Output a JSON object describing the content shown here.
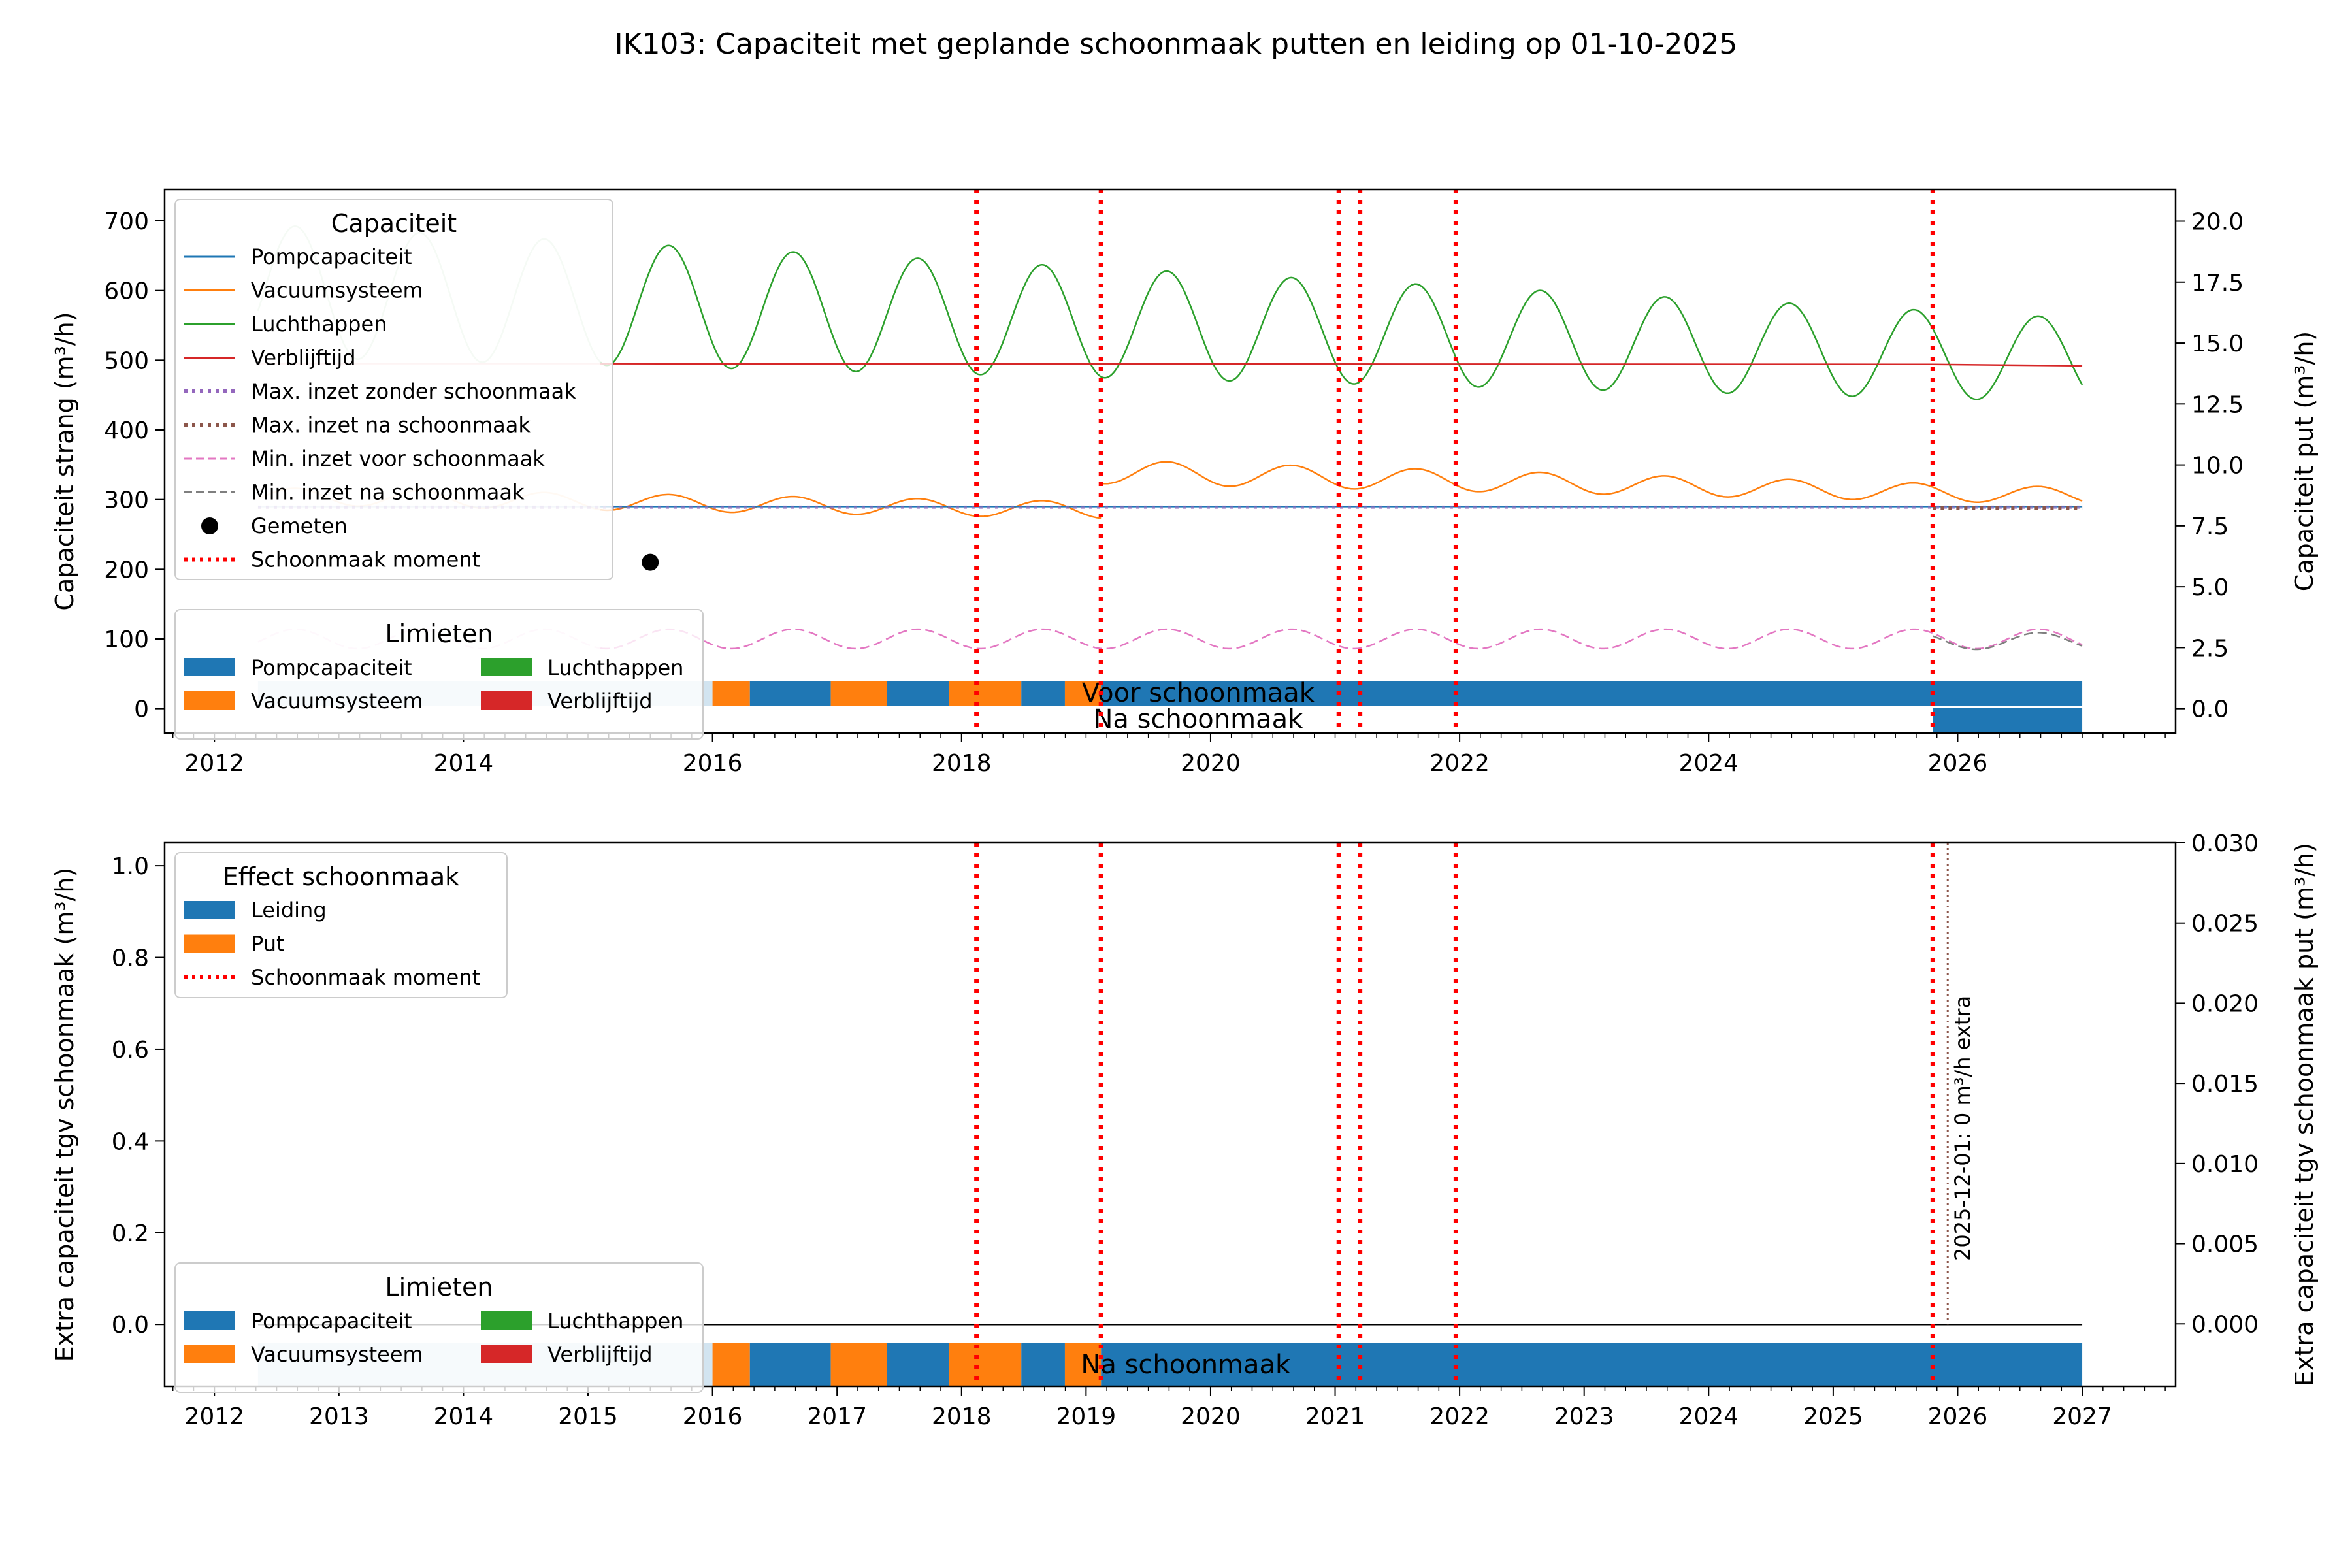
{
  "title": "IK103: Capaciteit met geplande schoonmaak putten en leiding op 01-10-2025",
  "colors": {
    "blue": "#1f77b4",
    "orange": "#ff7f0e",
    "green": "#2ca02c",
    "red": "#d62728",
    "purple": "#9467bd",
    "brown": "#8c564b",
    "pink": "#e377c2",
    "gray": "#7f7f7f",
    "dotred": "#ff0000"
  },
  "chart_data": [
    {
      "type": "line",
      "ylabel_left": "Capaciteit strang (m³/h)",
      "ylabel_right": "Capaciteit put (m³/h)",
      "xlim": [
        2011.6,
        2027.75
      ],
      "ylim": [
        -35,
        745
      ],
      "ylim_right": [
        -1.0,
        21.3
      ],
      "xticks": [
        2012,
        2014,
        2016,
        2018,
        2020,
        2022,
        2024,
        2026
      ],
      "xtick_labels": [
        "2012",
        "2014",
        "2016",
        "2018",
        "2020",
        "2022",
        "2024",
        "2026"
      ],
      "yticks": [
        0,
        100,
        200,
        300,
        400,
        500,
        600,
        700
      ],
      "ytick_labels": [
        "0",
        "100",
        "200",
        "300",
        "400",
        "500",
        "600",
        "700"
      ],
      "yticks_right": [
        0.0,
        2.5,
        5.0,
        7.5,
        10.0,
        12.5,
        15.0,
        17.5,
        20.0
      ],
      "ytick_labels_right": [
        "0.0",
        "2.5",
        "5.0",
        "7.5",
        "10.0",
        "12.5",
        "15.0",
        "17.5",
        "20.0"
      ],
      "grid": false,
      "legend_capaciteit": {
        "title": "Capaciteit",
        "placement": "top-left",
        "entries": [
          "Pompcapaciteit",
          "Vacuumsysteem",
          "Luchthappen",
          "Verblijftijd",
          "Max. inzet zonder schoonmaak",
          "Max. inzet na schoonmaak",
          "Min. inzet voor schoonmaak",
          "Min. inzet na schoonmaak",
          "Gemeten",
          "Schoonmaak moment"
        ]
      },
      "legend_limieten": {
        "title": "Limieten",
        "placement": "lower-left",
        "entries": [
          "Pompcapaciteit",
          "Luchthappen",
          "Vacuumsysteem",
          "Verblijftijd"
        ]
      },
      "series": [
        {
          "name": "Pompcapaciteit",
          "values": [
            [
              2012.35,
              290
            ],
            [
              2027.0,
              290
            ]
          ]
        },
        {
          "name": "Verblijftijd",
          "values": [
            [
              2012.35,
              495
            ],
            [
              2025.8,
              494
            ],
            [
              2027.0,
              492
            ]
          ]
        },
        {
          "name": "Luchthappen",
          "model": {
            "base_start": 600,
            "base_end": 500,
            "amplitude_start": 95,
            "amplitude_end": 60,
            "period_years": 1.0,
            "peak_year": 2012.65
          }
        },
        {
          "name": "Vacuumsysteem",
          "model": {
            "segments": [
              {
                "from": 2012.35,
                "to": 2019.12,
                "base_start": 305,
                "base_end": 285,
                "amplitude": 12
              },
              {
                "from": 2019.12,
                "to": 2027.0,
                "base_start": 340,
                "base_end": 305,
                "amplitude_start": 17,
                "amplitude_end": 12
              }
            ],
            "period_years": 1.0,
            "peak_year": 2012.65
          }
        },
        {
          "name": "Min. inzet voor schoonmaak",
          "model": {
            "base": 100,
            "amplitude": 14,
            "period_years": 1.0,
            "peak_year": 2012.65
          }
        },
        {
          "name": "Min. inzet na schoonmaak",
          "model": {
            "from": 2025.8,
            "to": 2027.0,
            "base": 97,
            "amplitude": 12
          }
        },
        {
          "name": "Max. inzet zonder schoonmaak",
          "values": [
            [
              2012.35,
              289
            ],
            [
              2027.0,
              289
            ]
          ]
        },
        {
          "name": "Max. inzet na schoonmaak",
          "values": [
            [
              2025.8,
              288
            ],
            [
              2027.0,
              288
            ]
          ]
        },
        {
          "name": "Gemeten",
          "points": [
            [
              2015.5,
              210
            ]
          ]
        }
      ],
      "cleaning_moments": [
        2018.12,
        2019.12,
        2021.03,
        2021.2,
        2021.97,
        2025.8
      ],
      "limit_bars": {
        "voor_label": "Voor schoonmaak",
        "na_label": "Na schoonmaak",
        "voor": [
          {
            "from": 2012.35,
            "to": 2016.0,
            "limit": "Pompcapaciteit",
            "faded": true
          },
          {
            "from": 2016.0,
            "to": 2016.3,
            "limit": "Vacuumsysteem"
          },
          {
            "from": 2016.3,
            "to": 2016.95,
            "limit": "Pompcapaciteit"
          },
          {
            "from": 2016.95,
            "to": 2017.4,
            "limit": "Vacuumsysteem"
          },
          {
            "from": 2017.4,
            "to": 2017.9,
            "limit": "Pompcapaciteit"
          },
          {
            "from": 2017.9,
            "to": 2018.48,
            "limit": "Vacuumsysteem"
          },
          {
            "from": 2018.48,
            "to": 2018.83,
            "limit": "Pompcapaciteit"
          },
          {
            "from": 2018.83,
            "to": 2019.12,
            "limit": "Vacuumsysteem"
          },
          {
            "from": 2019.12,
            "to": 2027.0,
            "limit": "Pompcapaciteit"
          }
        ],
        "na": [
          {
            "from": 2025.8,
            "to": 2027.0,
            "limit": "Pompcapaciteit"
          }
        ]
      }
    },
    {
      "type": "bar",
      "ylabel_left": "Extra capaciteit tgv schoonmaak (m³/h)",
      "ylabel_right": "Extra capaciteit tgv schoonmaak put (m³/h)",
      "xlim": [
        2011.6,
        2027.75
      ],
      "ylim": [
        -0.135,
        1.05
      ],
      "ylim_right": [
        -0.0039,
        0.03
      ],
      "xticks": [
        2012,
        2013,
        2014,
        2015,
        2016,
        2017,
        2018,
        2019,
        2020,
        2021,
        2022,
        2023,
        2024,
        2025,
        2026,
        2027
      ],
      "xtick_labels": [
        "2012",
        "2013",
        "2014",
        "2015",
        "2016",
        "2017",
        "2018",
        "2019",
        "2020",
        "2021",
        "2022",
        "2023",
        "2024",
        "2025",
        "2026",
        "2027"
      ],
      "yticks": [
        0.0,
        0.2,
        0.4,
        0.6,
        0.8,
        1.0
      ],
      "ytick_labels": [
        "0.0",
        "0.2",
        "0.4",
        "0.6",
        "0.8",
        "1.0"
      ],
      "yticks_right": [
        0.0,
        0.005,
        0.01,
        0.015,
        0.02,
        0.025,
        0.03
      ],
      "ytick_labels_right": [
        "0.000",
        "0.005",
        "0.010",
        "0.015",
        "0.020",
        "0.025",
        "0.030"
      ],
      "grid": false,
      "legend_effect": {
        "title": "Effect schoonmaak",
        "placement": "top-left",
        "entries": [
          "Leiding",
          "Put",
          "Schoonmaak moment"
        ]
      },
      "legend_limieten": {
        "title": "Limieten",
        "placement": "lower-left",
        "entries": [
          "Pompcapaciteit",
          "Luchthappen",
          "Vacuumsysteem",
          "Verblijftijd"
        ]
      },
      "zero_line": [
        2012.35,
        2027.0
      ],
      "cleaning_moments": [
        2018.12,
        2019.12,
        2021.03,
        2021.2,
        2021.97,
        2025.8
      ],
      "annotation": {
        "x": 2025.92,
        "text": "2025-12-01: 0 m³/h extra"
      },
      "limit_bars": {
        "na_label": "Na schoonmaak",
        "na": [
          {
            "from": 2012.35,
            "to": 2016.0,
            "limit": "Pompcapaciteit",
            "faded": true
          },
          {
            "from": 2016.0,
            "to": 2016.3,
            "limit": "Vacuumsysteem"
          },
          {
            "from": 2016.3,
            "to": 2016.95,
            "limit": "Pompcapaciteit"
          },
          {
            "from": 2016.95,
            "to": 2017.4,
            "limit": "Vacuumsysteem"
          },
          {
            "from": 2017.4,
            "to": 2017.9,
            "limit": "Pompcapaciteit"
          },
          {
            "from": 2017.9,
            "to": 2018.48,
            "limit": "Vacuumsysteem"
          },
          {
            "from": 2018.48,
            "to": 2018.83,
            "limit": "Pompcapaciteit"
          },
          {
            "from": 2018.83,
            "to": 2019.12,
            "limit": "Vacuumsysteem"
          },
          {
            "from": 2019.12,
            "to": 2027.0,
            "limit": "Pompcapaciteit"
          }
        ]
      }
    }
  ]
}
